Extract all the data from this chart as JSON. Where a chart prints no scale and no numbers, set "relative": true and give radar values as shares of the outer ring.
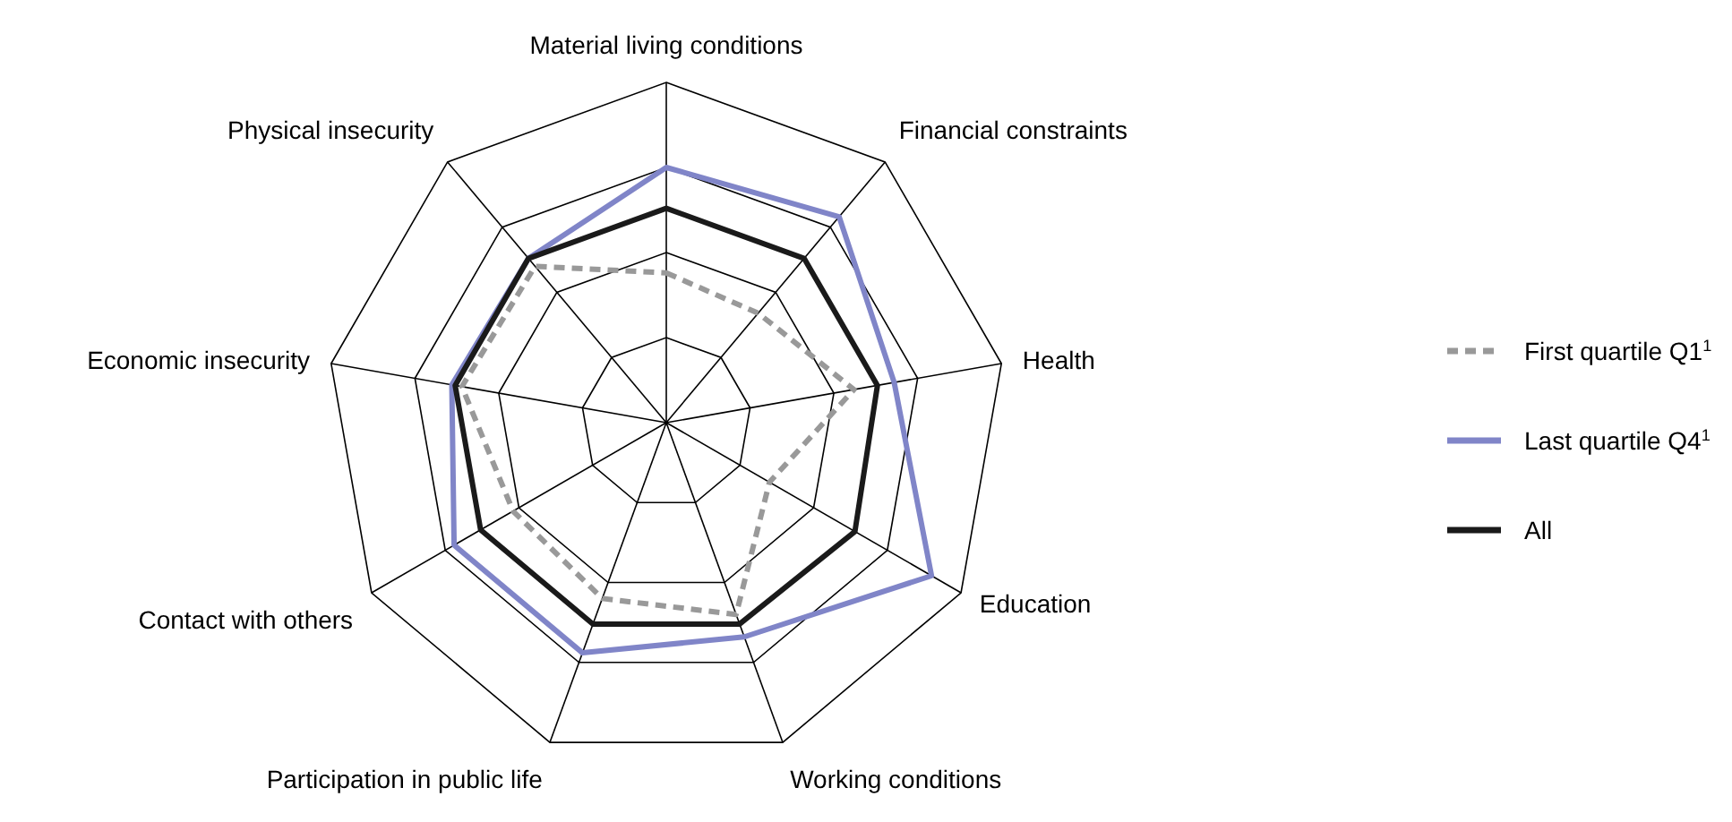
{
  "chart_data": {
    "type": "radar",
    "relative": true,
    "categories": [
      "Material living conditions",
      "Financial constraints",
      "Health",
      "Education",
      "Working conditions",
      "Participation in public life",
      "Contact with others",
      "Economic insecurity",
      "Physical insecurity"
    ],
    "series": [
      {
        "name": "First quartile Q1$^{1}$",
        "color": "#999999",
        "line_style": "dashed",
        "values": [
          0.44,
          0.42,
          0.56,
          0.35,
          0.6,
          0.55,
          0.52,
          0.61,
          0.6
        ]
      },
      {
        "name": "Last quartile Q4$^{1}$",
        "color": "#8085c8",
        "line_style": "solid",
        "values": [
          0.75,
          0.79,
          0.68,
          0.9,
          0.67,
          0.72,
          0.72,
          0.64,
          0.63
        ]
      },
      {
        "name": "All",
        "color": "#1a1a1a",
        "line_style": "solid",
        "values": [
          0.63,
          0.63,
          0.63,
          0.64,
          0.63,
          0.63,
          0.63,
          0.63,
          0.63
        ]
      }
    ],
    "legend": "right",
    "marker": "none"
  }
}
